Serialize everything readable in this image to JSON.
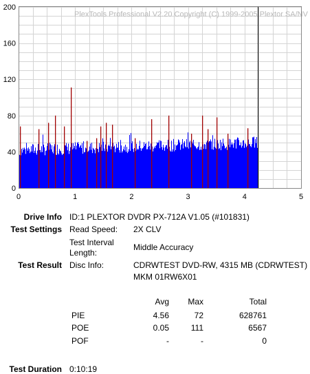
{
  "chart_data": {
    "type": "bar",
    "watermark": "PlexTools Professional V2.20 Copyright (C) 1999-2005 Plextor SA/NV",
    "xlim": [
      0,
      5
    ],
    "ylim": [
      0,
      200
    ],
    "x_ticks": [
      "0",
      "1",
      "2",
      "3",
      "4",
      "5"
    ],
    "y_ticks": [
      "0",
      "40",
      "80",
      "120",
      "160",
      "200"
    ],
    "grid": true,
    "end_marker_x": 4.23,
    "series": [
      {
        "name": "PIE",
        "color": "#0000ff",
        "base_level": 45,
        "max": 72
      },
      {
        "name": "POE",
        "color": "#a00000",
        "max": 111
      }
    ],
    "poe_spikes": [
      {
        "x": 0.02,
        "y": 68
      },
      {
        "x": 0.35,
        "y": 65
      },
      {
        "x": 0.52,
        "y": 72
      },
      {
        "x": 0.65,
        "y": 80
      },
      {
        "x": 0.8,
        "y": 68
      },
      {
        "x": 0.92,
        "y": 111
      },
      {
        "x": 1.2,
        "y": 52
      },
      {
        "x": 1.38,
        "y": 55
      },
      {
        "x": 1.45,
        "y": 68
      },
      {
        "x": 1.55,
        "y": 72
      },
      {
        "x": 1.65,
        "y": 70
      },
      {
        "x": 2.05,
        "y": 55
      },
      {
        "x": 2.35,
        "y": 76
      },
      {
        "x": 2.65,
        "y": 80
      },
      {
        "x": 3.05,
        "y": 60
      },
      {
        "x": 3.25,
        "y": 80
      },
      {
        "x": 3.35,
        "y": 65
      },
      {
        "x": 3.5,
        "y": 78
      },
      {
        "x": 3.7,
        "y": 60
      },
      {
        "x": 4.05,
        "y": 66
      }
    ]
  },
  "info": {
    "drive_label": "Drive Info",
    "drive_value": "ID:1 PLEXTOR DVDR PX-712A V1.05 (#101831)",
    "settings_label": "Test Settings",
    "read_speed_label": "Read Speed:",
    "read_speed_value": "2X CLV",
    "interval_label_1": "Test Interval",
    "interval_label_2": "Length:",
    "interval_value": "Middle Accuracy",
    "result_label": "Test Result",
    "disc_label": "Disc Info:",
    "disc_value_1": "CDRWTEST DVD-RW, 4315 MB (CDRWTEST)",
    "disc_value_2": "MKM 01RW6X01",
    "duration_label": "Test Duration",
    "duration_value": "0:10:19"
  },
  "stats": {
    "headers": {
      "avg": "Avg",
      "max": "Max",
      "total": "Total"
    },
    "rows": [
      {
        "name": "PIE",
        "avg": "4.56",
        "max": "72",
        "total": "628761"
      },
      {
        "name": "POE",
        "avg": "0.05",
        "max": "111",
        "total": "6567"
      },
      {
        "name": "POF",
        "avg": "-",
        "max": "-",
        "total": "0"
      }
    ]
  }
}
